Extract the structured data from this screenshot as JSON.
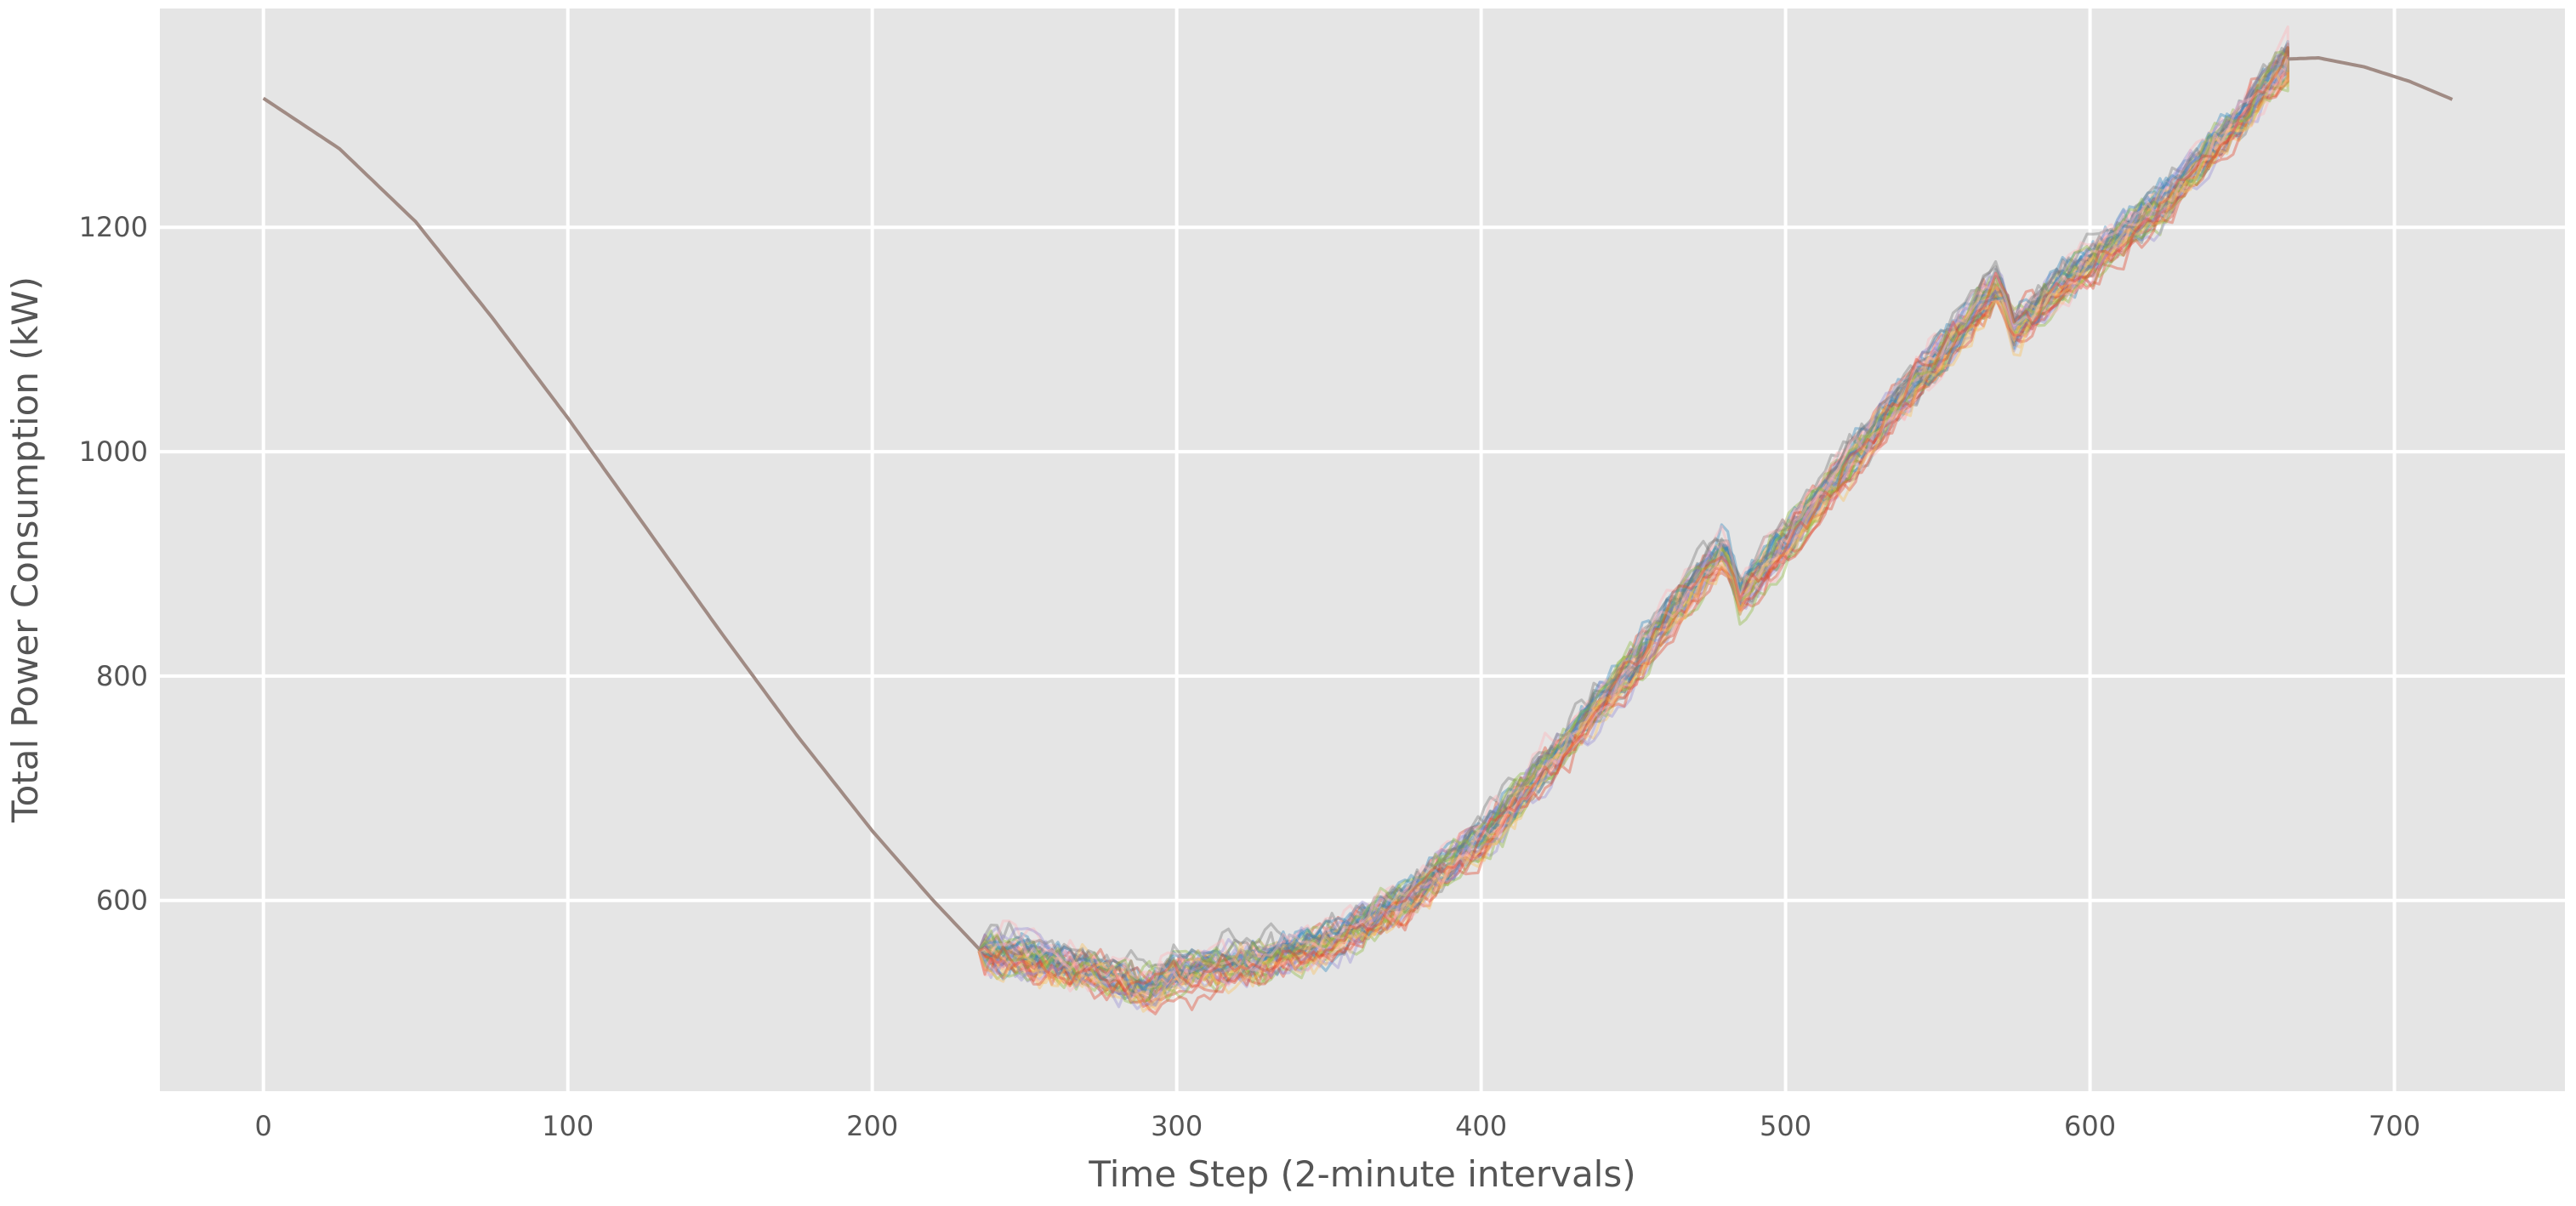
{
  "chart_data": {
    "type": "line",
    "title": "",
    "xlabel": "Time Step (2-minute intervals)",
    "ylabel": "Total Power Consumption (kW)",
    "xlim": [
      -34,
      756
    ],
    "ylim": [
      430,
      1395
    ],
    "x_ticks": [
      0,
      100,
      200,
      300,
      400,
      500,
      600,
      700
    ],
    "y_ticks": [
      600,
      800,
      1000,
      1200
    ],
    "grid": true,
    "legend": "none",
    "style": "ggplot",
    "colors": {
      "plot_background": "#e5e5e5",
      "grid": "#ffffff",
      "tick_text": "#555555",
      "label_text": "#555555",
      "shared_history": "#a08b84"
    },
    "history": {
      "x_start": 0,
      "x_end": 235,
      "points": [
        [
          0,
          1315
        ],
        [
          25,
          1270
        ],
        [
          50,
          1205
        ],
        [
          75,
          1120
        ],
        [
          100,
          1030
        ],
        [
          125,
          935
        ],
        [
          150,
          840
        ],
        [
          175,
          748
        ],
        [
          200,
          662
        ],
        [
          220,
          600
        ],
        [
          235,
          557
        ]
      ]
    },
    "forecast": {
      "num_series": 50,
      "x_start": 235,
      "x_end": 665,
      "mean_points": [
        [
          235,
          555
        ],
        [
          250,
          550
        ],
        [
          275,
          535
        ],
        [
          290,
          520
        ],
        [
          300,
          535
        ],
        [
          325,
          545
        ],
        [
          350,
          562
        ],
        [
          375,
          600
        ],
        [
          400,
          655
        ],
        [
          425,
          730
        ],
        [
          450,
          810
        ],
        [
          475,
          900
        ],
        [
          480,
          915
        ],
        [
          485,
          870
        ],
        [
          500,
          920
        ],
        [
          525,
          1005
        ],
        [
          550,
          1085
        ],
        [
          570,
          1150
        ],
        [
          575,
          1110
        ],
        [
          600,
          1170
        ],
        [
          625,
          1225
        ],
        [
          650,
          1300
        ],
        [
          665,
          1348
        ]
      ],
      "spread_kw": 22,
      "jumps": [
        {
          "x": 480,
          "drop": 55
        },
        {
          "x": 570,
          "drop": 45
        }
      ],
      "palette": [
        "#e24a33",
        "#348abd",
        "#988ed5",
        "#777777",
        "#fbc15e",
        "#8eba42",
        "#ffb5b8"
      ],
      "opacity": 0.4
    },
    "tail": {
      "x_start": 665,
      "x_end": 719,
      "points": [
        [
          665,
          1350
        ],
        [
          675,
          1351
        ],
        [
          690,
          1343
        ],
        [
          705,
          1330
        ],
        [
          719,
          1314
        ]
      ]
    }
  }
}
